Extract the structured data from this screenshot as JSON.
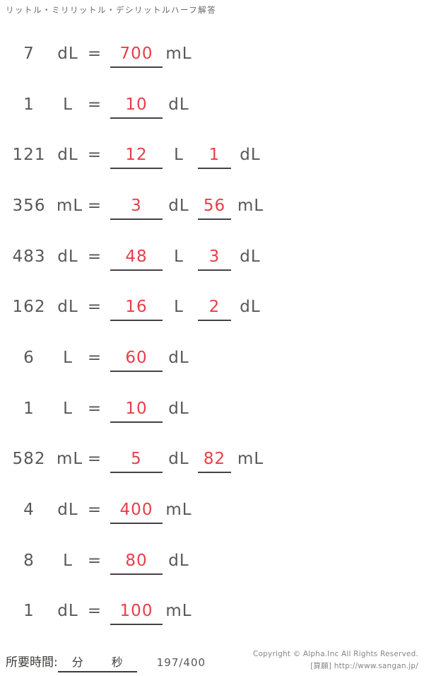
{
  "title": "リットル・ミリリットル・デシリットルハーフ解答",
  "equals": "=",
  "colors": {
    "text_gray": "#595757",
    "answer_red": "#e83e48",
    "underline": "#474242"
  },
  "problems": [
    {
      "value": "7",
      "unit": "dL",
      "answer1": "700",
      "answer1_unit": "mL",
      "answer2": "",
      "answer2_unit": ""
    },
    {
      "value": "1",
      "unit": "L",
      "answer1": "10",
      "answer1_unit": "dL",
      "answer2": "",
      "answer2_unit": ""
    },
    {
      "value": "121",
      "unit": "dL",
      "answer1": "12",
      "answer1_unit": "L",
      "answer2": "1",
      "answer2_unit": "dL"
    },
    {
      "value": "356",
      "unit": "mL",
      "answer1": "3",
      "answer1_unit": "dL",
      "answer2": "56",
      "answer2_unit": "mL"
    },
    {
      "value": "483",
      "unit": "dL",
      "answer1": "48",
      "answer1_unit": "L",
      "answer2": "3",
      "answer2_unit": "dL"
    },
    {
      "value": "162",
      "unit": "dL",
      "answer1": "16",
      "answer1_unit": "L",
      "answer2": "2",
      "answer2_unit": "dL"
    },
    {
      "value": "6",
      "unit": "L",
      "answer1": "60",
      "answer1_unit": "dL",
      "answer2": "",
      "answer2_unit": ""
    },
    {
      "value": "1",
      "unit": "L",
      "answer1": "10",
      "answer1_unit": "dL",
      "answer2": "",
      "answer2_unit": ""
    },
    {
      "value": "582",
      "unit": "mL",
      "answer1": "5",
      "answer1_unit": "dL",
      "answer2": "82",
      "answer2_unit": "mL"
    },
    {
      "value": "4",
      "unit": "dL",
      "answer1": "400",
      "answer1_unit": "mL",
      "answer2": "",
      "answer2_unit": ""
    },
    {
      "value": "8",
      "unit": "L",
      "answer1": "80",
      "answer1_unit": "dL",
      "answer2": "",
      "answer2_unit": ""
    },
    {
      "value": "1",
      "unit": "dL",
      "answer1": "100",
      "answer1_unit": "mL",
      "answer2": "",
      "answer2_unit": ""
    }
  ],
  "footer": {
    "time_label": "所要時間:",
    "minutes_label": "分",
    "seconds_label": "秒",
    "page_counter": "197/400",
    "copyright_line1": "Copyright © Alpha.Inc All Rights Reserved.",
    "copyright_line2": "[算願] http://www.sangan.jp/"
  }
}
